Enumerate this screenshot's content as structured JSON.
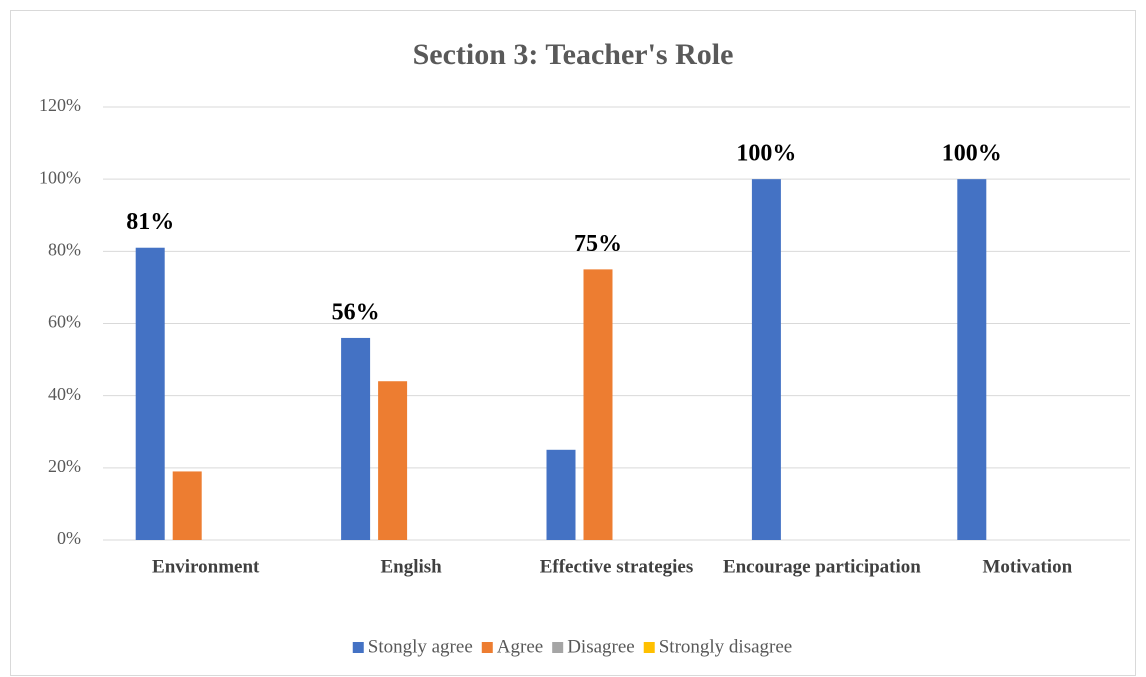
{
  "chart_data": {
    "type": "bar",
    "title": "Section 3: Teacher's Role",
    "categories": [
      "Environment",
      "English",
      "Effective strategies",
      "Encourage participation",
      "Motivation"
    ],
    "series": [
      {
        "name": "Stongly agree",
        "color": "#4472c4",
        "values": [
          81,
          56,
          25,
          100,
          100
        ],
        "value_labels": [
          "81%",
          "56%",
          null,
          "100%",
          "100%"
        ]
      },
      {
        "name": "Agree",
        "color": "#ed7d31",
        "values": [
          19,
          44,
          75,
          0,
          0
        ],
        "value_labels": [
          null,
          null,
          "75%",
          null,
          null
        ]
      },
      {
        "name": "Disagree",
        "color": "#a5a5a5",
        "values": [
          0,
          0,
          0,
          0,
          0
        ]
      },
      {
        "name": "Strongly disagree",
        "color": "#ffc000",
        "values": [
          0,
          0,
          0,
          0,
          0
        ]
      }
    ],
    "ylim": [
      0,
      120
    ],
    "yticks": [
      {
        "value": 0,
        "label": "0%"
      },
      {
        "value": 20,
        "label": "20%"
      },
      {
        "value": 40,
        "label": "40%"
      },
      {
        "value": 60,
        "label": "60%"
      },
      {
        "value": 80,
        "label": "80%"
      },
      {
        "value": 100,
        "label": "100%"
      },
      {
        "value": 120,
        "label": "120%"
      }
    ],
    "grid": true,
    "legend": "bottom"
  }
}
